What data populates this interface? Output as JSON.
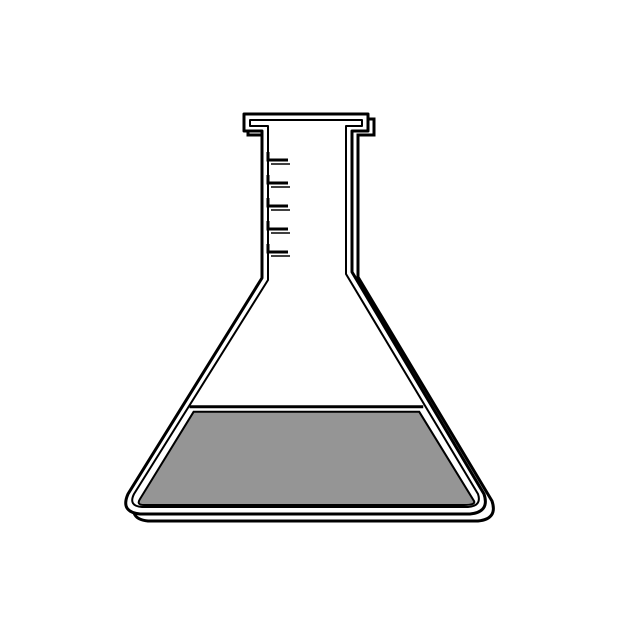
{
  "illustration": {
    "icon": "erlenmeyer-flask-icon",
    "liquid_level": 0.43,
    "graduation_marks": 5,
    "colors": {
      "background": "#ffffff",
      "outline": "#000000",
      "liquid": "#959595",
      "glass": "#ffffff"
    }
  }
}
